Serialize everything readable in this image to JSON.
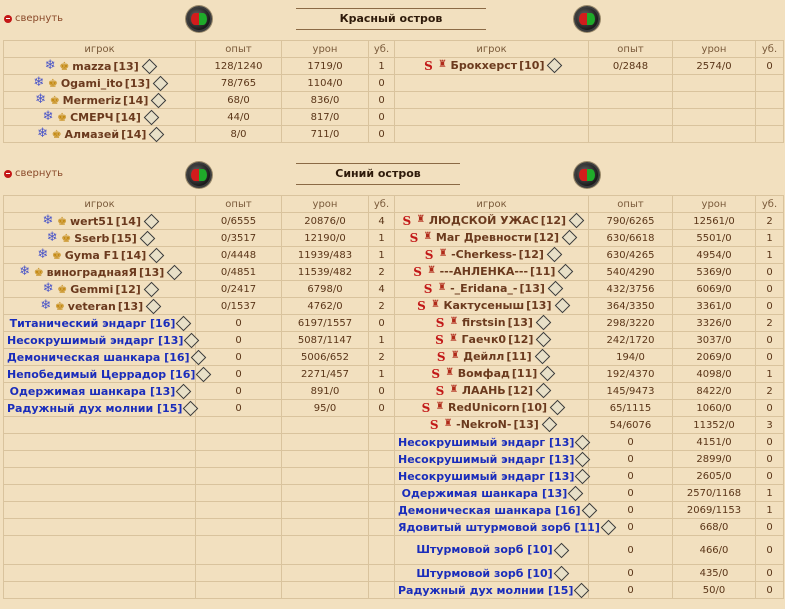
{
  "collapse_label": "свернуть",
  "headers": {
    "player": "игрок",
    "exp": "опыт",
    "damage": "урон",
    "kills": "уб."
  },
  "red": {
    "title": "Красный остров",
    "left": [
      {
        "name": "mazza",
        "level": "[13]",
        "exp": "128/1240",
        "dmg": "1719/0",
        "kills": "1"
      },
      {
        "name": "Ogami_ito",
        "level": "[13]",
        "exp": "78/765",
        "dmg": "1104/0",
        "kills": "0"
      },
      {
        "name": "Mermeriz",
        "level": "[14]",
        "exp": "68/0",
        "dmg": "836/0",
        "kills": "0"
      },
      {
        "name": "СМЕРЧ",
        "level": "[14]",
        "exp": "44/0",
        "dmg": "817/0",
        "kills": "0"
      },
      {
        "name": "Алмазей",
        "level": "[14]",
        "exp": "8/0",
        "dmg": "711/0",
        "kills": "0"
      }
    ],
    "right": [
      {
        "name": "Брокхерст",
        "level": "[10]",
        "exp": "0/2848",
        "dmg": "2574/0",
        "kills": "0"
      }
    ]
  },
  "blue": {
    "title": "Синий остров",
    "left_players": [
      {
        "name": "wert51",
        "level": "[14]",
        "exp": "0/6555",
        "dmg": "20876/0",
        "kills": "4"
      },
      {
        "name": "Sserb",
        "level": "[15]",
        "exp": "0/3517",
        "dmg": "12190/0",
        "kills": "1"
      },
      {
        "name": "Gyma F1",
        "level": "[14]",
        "exp": "0/4448",
        "dmg": "11939/483",
        "kills": "1"
      },
      {
        "name": "винограднаяЯ",
        "level": "[13]",
        "exp": "0/4851",
        "dmg": "11539/482",
        "kills": "2"
      },
      {
        "name": "Gemmi",
        "level": "[12]",
        "exp": "0/2417",
        "dmg": "6798/0",
        "kills": "4"
      },
      {
        "name": "veteran",
        "level": "[13]",
        "exp": "0/1537",
        "dmg": "4762/0",
        "kills": "2"
      }
    ],
    "left_monsters": [
      {
        "name": "Титанический эндарг",
        "level": "[16]",
        "exp": "0",
        "dmg": "6197/1557",
        "kills": "0"
      },
      {
        "name": "Несокрушимый эндарг",
        "level": "[13]",
        "exp": "0",
        "dmg": "5087/1147",
        "kills": "1"
      },
      {
        "name": "Демоническая шанкара",
        "level": "[16]",
        "exp": "0",
        "dmg": "5006/652",
        "kills": "2"
      },
      {
        "name": "Непобедимый Церрадор",
        "level": "[16]",
        "exp": "0",
        "dmg": "2271/457",
        "kills": "1"
      },
      {
        "name": "Одержимая шанкара",
        "level": "[13]",
        "exp": "0",
        "dmg": "891/0",
        "kills": "0"
      },
      {
        "name": "Радужный дух молнии",
        "level": "[15]",
        "exp": "0",
        "dmg": "95/0",
        "kills": "0"
      }
    ],
    "right_players": [
      {
        "name": "ЛЮДСКОЙ УЖАС",
        "level": "[12]",
        "exp": "790/6265",
        "dmg": "12561/0",
        "kills": "2"
      },
      {
        "name": "Маг Древности",
        "level": "[12]",
        "exp": "630/6618",
        "dmg": "5501/0",
        "kills": "1"
      },
      {
        "name": "-Cherkess-",
        "level": "[12]",
        "exp": "630/4265",
        "dmg": "4954/0",
        "kills": "1"
      },
      {
        "name": "---АНЛЕНКА---",
        "level": "[11]",
        "exp": "540/4290",
        "dmg": "5369/0",
        "kills": "0"
      },
      {
        "name": "-_Eridana_-",
        "level": "[13]",
        "exp": "432/3756",
        "dmg": "6069/0",
        "kills": "0"
      },
      {
        "name": "Кактусеныш",
        "level": "[13]",
        "exp": "364/3350",
        "dmg": "3361/0",
        "kills": "0"
      },
      {
        "name": "firstsin",
        "level": "[13]",
        "exp": "298/3220",
        "dmg": "3326/0",
        "kills": "2"
      },
      {
        "name": "Гаечк0",
        "level": "[12]",
        "exp": "242/1720",
        "dmg": "3037/0",
        "kills": "0"
      },
      {
        "name": "Дейлл",
        "level": "[11]",
        "exp": "194/0",
        "dmg": "2069/0",
        "kills": "0"
      },
      {
        "name": "Вомфад",
        "level": "[11]",
        "exp": "192/4370",
        "dmg": "4098/0",
        "kills": "1"
      },
      {
        "name": "ЛААНЬ",
        "level": "[12]",
        "exp": "145/9473",
        "dmg": "8422/0",
        "kills": "2"
      },
      {
        "name": "RedUnicorn",
        "level": "[10]",
        "exp": "65/1115",
        "dmg": "1060/0",
        "kills": "0"
      },
      {
        "name": "-NekroN-",
        "level": "[13]",
        "exp": "54/6076",
        "dmg": "11352/0",
        "kills": "3"
      }
    ],
    "right_monsters": [
      {
        "name": "Несокрушимый эндарг",
        "level": "[13]",
        "exp": "0",
        "dmg": "4151/0",
        "kills": "0"
      },
      {
        "name": "Несокрушимый эндарг",
        "level": "[13]",
        "exp": "0",
        "dmg": "2899/0",
        "kills": "0"
      },
      {
        "name": "Несокрушимый эндарг",
        "level": "[13]",
        "exp": "0",
        "dmg": "2605/0",
        "kills": "0"
      },
      {
        "name": "Одержимая шанкара",
        "level": "[13]",
        "exp": "0",
        "dmg": "2570/1168",
        "kills": "1"
      },
      {
        "name": "Демоническая шанкара",
        "level": "[16]",
        "exp": "0",
        "dmg": "2069/1153",
        "kills": "1"
      },
      {
        "name": "Ядовитый штурмовой зорб",
        "level": "[11]",
        "exp": "0",
        "dmg": "668/0",
        "kills": "0"
      },
      {
        "name": "Штурмовой зорб",
        "level": "[10]",
        "exp": "0",
        "dmg": "466/0",
        "kills": "0"
      },
      {
        "name": "Штурмовой зорб",
        "level": "[10]",
        "exp": "0",
        "dmg": "435/0",
        "kills": "0"
      },
      {
        "name": "Радужный дух молнии",
        "level": "[15]",
        "exp": "0",
        "dmg": "50/0",
        "kills": "0"
      }
    ]
  }
}
